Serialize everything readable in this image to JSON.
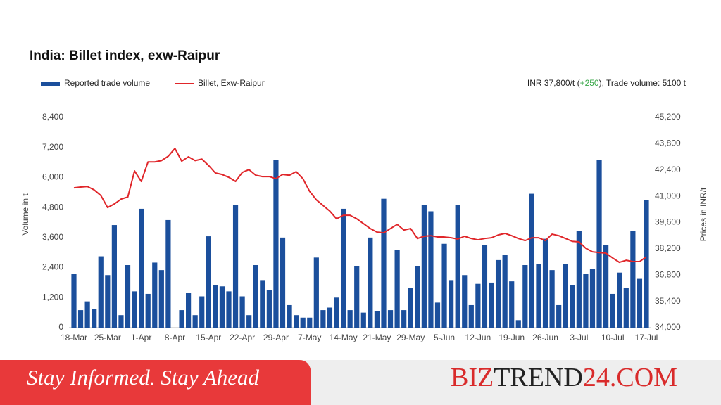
{
  "chart_data": {
    "type": "bar-line",
    "title": "India: Billet index, exw-Raipur",
    "header": {
      "before": "INR 37,800/t (",
      "change": "+250",
      "after": "), Trade volume: 5100 t"
    },
    "y_label": "Volume in t",
    "y2_label": "Prices in INR/t",
    "categories": [
      "18-Mar",
      null,
      null,
      null,
      null,
      "25-Mar",
      null,
      null,
      null,
      null,
      "1-Apr",
      null,
      null,
      null,
      null,
      "8-Apr",
      null,
      null,
      null,
      null,
      "15-Apr",
      null,
      null,
      null,
      null,
      "22-Apr",
      null,
      null,
      null,
      null,
      "29-Apr",
      null,
      null,
      null,
      null,
      "7-May",
      null,
      null,
      null,
      null,
      "14-May",
      null,
      null,
      null,
      null,
      "21-May",
      null,
      null,
      null,
      null,
      "29-May",
      null,
      null,
      null,
      null,
      "5-Jun",
      null,
      null,
      null,
      null,
      "12-Jun",
      null,
      null,
      null,
      null,
      "19-Jun",
      null,
      null,
      null,
      null,
      "26-Jun",
      null,
      null,
      null,
      null,
      "3-Jul",
      null,
      null,
      null,
      null,
      "10-Jul",
      null,
      null,
      null,
      null,
      "17-Jul"
    ],
    "series": [
      {
        "name": "Reported trade volume",
        "color": "#1b4f9c",
        "type": "bar",
        "values": [
          2150,
          700,
          1050,
          750,
          2850,
          2100,
          4100,
          500,
          2500,
          1450,
          4750,
          1350,
          2600,
          2300,
          4300,
          null,
          700,
          1400,
          500,
          1250,
          3650,
          1700,
          1650,
          1450,
          4900,
          1250,
          500,
          2500,
          1900,
          1500,
          6700,
          3600,
          900,
          500,
          400,
          400,
          2800,
          700,
          800,
          1200,
          4750,
          700,
          2450,
          600,
          3600,
          650,
          5150,
          700,
          3100,
          700,
          1600,
          2450,
          4900,
          4650,
          1000,
          3350,
          1900,
          4900,
          2100,
          900,
          1750,
          3300,
          1800,
          2700,
          2900,
          1850,
          300,
          2500,
          5350,
          2550,
          3550,
          2300,
          900,
          2550,
          1700,
          3850,
          2150,
          2350,
          6700,
          3300,
          1350,
          2200,
          1600,
          3850,
          1950,
          5100
        ]
      },
      {
        "name": "Billet, Exw-Raipur",
        "color": "#e0262a",
        "type": "line",
        "axis": "y2",
        "values": [
          41450,
          41490,
          41520,
          41340,
          41040,
          40400,
          40590,
          40850,
          40960,
          42350,
          41790,
          42830,
          42830,
          42900,
          43130,
          43550,
          42870,
          43100,
          42900,
          42980,
          42640,
          42240,
          42160,
          42010,
          41790,
          42270,
          42420,
          42120,
          42050,
          42050,
          41940,
          42160,
          42120,
          42310,
          41940,
          41260,
          40810,
          40510,
          40210,
          39800,
          39990,
          39990,
          39800,
          39540,
          39280,
          39090,
          39050,
          39280,
          39500,
          39200,
          39280,
          38750,
          38870,
          38900,
          38830,
          38830,
          38790,
          38720,
          38870,
          38750,
          38680,
          38750,
          38790,
          38940,
          39020,
          38900,
          38750,
          38640,
          38790,
          38790,
          38640,
          38980,
          38900,
          38750,
          38600,
          38570,
          38230,
          38040,
          38000,
          37970,
          37710,
          37480,
          37590,
          37520,
          37520,
          37780
        ]
      }
    ],
    "ylim": [
      0,
      8400
    ],
    "yticks": [
      0,
      {
        "value": 1200,
        "label": "1,200"
      },
      {
        "value": 2400,
        "label": "2,400"
      },
      {
        "value": 3600,
        "label": "3,600"
      },
      {
        "value": 4800,
        "label": "4,800"
      },
      {
        "value": 6000,
        "label": "6,000"
      },
      {
        "value": 7200,
        "label": "7,200"
      },
      {
        "value": 8400,
        "label": "8,400"
      }
    ],
    "y2lim": [
      34000,
      45200
    ],
    "y2ticks": [
      {
        "value": 34000,
        "label": "34,000"
      },
      {
        "value": 35400,
        "label": "35,400"
      },
      {
        "value": 36800,
        "label": "36,800"
      },
      {
        "value": 38200,
        "label": "38,200"
      },
      {
        "value": 39600,
        "label": "39,600"
      },
      {
        "value": 41000,
        "label": "41,000"
      },
      {
        "value": 42400,
        "label": "42,400"
      },
      {
        "value": 43800,
        "label": "43,800"
      },
      {
        "value": 45200,
        "label": "45,200"
      }
    ],
    "grid": false
  },
  "banner": {
    "tagline": "Stay Informed. Stay Ahead",
    "brand": [
      "BIZ",
      "TREND",
      "24.COM"
    ]
  }
}
